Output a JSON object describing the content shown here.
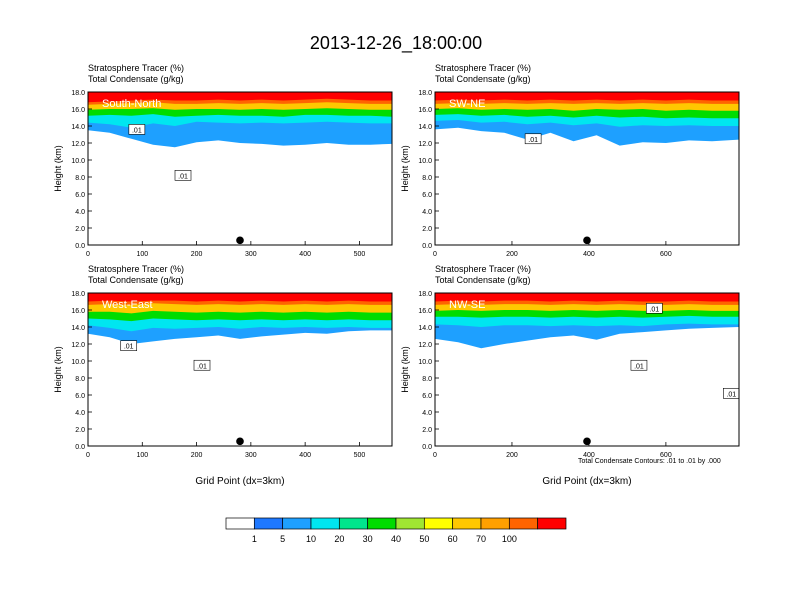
{
  "figure": {
    "title": "2013-12-26_18:00:00",
    "footnote": "Total Condensate Contours: .01 to .01 by .000",
    "colorbar": {
      "colors": [
        "#ffffff",
        "#1e78ff",
        "#1ea0ff",
        "#00e6f0",
        "#00e68c",
        "#00dc00",
        "#a0e632",
        "#ffff00",
        "#ffc800",
        "#ffa000",
        "#ff6400",
        "#ff0000"
      ],
      "labels": [
        "1",
        "5",
        "10",
        "20",
        "30",
        "40",
        "50",
        "60",
        "70",
        "100"
      ]
    }
  },
  "chart_data": [
    {
      "type": "heatmap",
      "line1": "Stratosphere Tracer   (%)",
      "line2": "Total Condensate   (g/kg)",
      "inset_label": "South-North",
      "xlabel": "",
      "ylabel": "Height (km)",
      "xlim": [
        0,
        560
      ],
      "ylim": [
        0,
        18
      ],
      "xticks": [
        0,
        100,
        200,
        300,
        400,
        500
      ],
      "yticks": [
        "0.0",
        "2.0",
        "4.0",
        "6.0",
        "8.0",
        "10.0",
        "12.0",
        "14.0",
        "16.0",
        "18.0"
      ],
      "marker_x": 280,
      "tracer_boundaries_km": {
        "x": [
          0,
          40,
          80,
          120,
          160,
          200,
          240,
          280,
          320,
          360,
          400,
          440,
          480,
          520,
          560
        ],
        "p100": [
          16.8,
          16.9,
          17.0,
          17.1,
          17.0,
          17.0,
          17.1,
          17.0,
          17.1,
          17.0,
          17.1,
          17.2,
          17.1,
          17.0,
          17.0
        ],
        "p70": [
          16.5,
          16.6,
          16.7,
          16.8,
          16.6,
          16.6,
          16.7,
          16.6,
          16.7,
          16.6,
          16.7,
          16.8,
          16.7,
          16.6,
          16.6
        ],
        "p50": [
          15.9,
          16.0,
          16.0,
          16.1,
          15.9,
          16.0,
          16.0,
          15.9,
          16.0,
          15.9,
          16.0,
          16.1,
          16.0,
          15.9,
          15.9
        ],
        "p30": [
          15.2,
          15.3,
          15.2,
          15.4,
          15.1,
          15.2,
          15.3,
          15.2,
          15.2,
          15.1,
          15.3,
          15.3,
          15.2,
          15.2,
          15.1
        ],
        "p10": [
          14.4,
          14.2,
          13.8,
          14.3,
          14.0,
          14.5,
          14.4,
          14.3,
          14.4,
          14.3,
          14.4,
          14.5,
          14.4,
          14.3,
          14.3
        ],
        "p1": [
          13.5,
          13.2,
          12.5,
          11.8,
          11.5,
          12.1,
          12.3,
          12.0,
          11.9,
          11.7,
          11.8,
          12.0,
          11.8,
          11.8,
          11.9
        ]
      },
      "contour_labels": [
        {
          "text": ".01",
          "x": 90,
          "y": 13.6
        },
        {
          "text": ".01",
          "x": 175,
          "y": 8.2
        }
      ]
    },
    {
      "type": "heatmap",
      "line1": "Stratosphere Tracer   (%)",
      "line2": "Total Condensate   (g/kg)",
      "inset_label": "SW-NE",
      "xlabel": "",
      "ylabel": "Height (km)",
      "xlim": [
        0,
        790
      ],
      "ylim": [
        0,
        18
      ],
      "xticks": [
        0,
        200,
        400,
        600
      ],
      "yticks": [
        "0.0",
        "2.0",
        "4.0",
        "6.0",
        "8.0",
        "10.0",
        "12.0",
        "14.0",
        "16.0",
        "18.0"
      ],
      "marker_x": 395,
      "tracer_boundaries_km": {
        "x": [
          0,
          60,
          120,
          180,
          240,
          300,
          360,
          420,
          480,
          540,
          600,
          660,
          720,
          790
        ],
        "p100": [
          17.0,
          17.1,
          17.0,
          17.1,
          17.0,
          17.1,
          17.0,
          17.1,
          17.0,
          17.1,
          17.0,
          17.1,
          17.0,
          17.0
        ],
        "p70": [
          16.6,
          16.7,
          16.6,
          16.7,
          16.6,
          16.7,
          16.6,
          16.7,
          16.6,
          16.7,
          16.6,
          16.7,
          16.6,
          16.6
        ],
        "p50": [
          16.0,
          16.1,
          15.9,
          16.0,
          15.9,
          16.0,
          15.8,
          16.0,
          15.9,
          16.0,
          15.8,
          15.9,
          15.8,
          15.8
        ],
        "p30": [
          15.3,
          15.4,
          15.2,
          15.3,
          15.1,
          15.2,
          15.0,
          15.2,
          15.0,
          15.1,
          14.9,
          15.0,
          14.9,
          14.9
        ],
        "p10": [
          14.6,
          14.7,
          14.4,
          14.5,
          14.2,
          14.4,
          14.1,
          14.3,
          13.9,
          14.1,
          14.0,
          14.1,
          14.0,
          14.0
        ],
        "p1": [
          13.6,
          13.8,
          13.4,
          13.2,
          12.4,
          13.2,
          12.2,
          12.9,
          11.7,
          12.1,
          12.0,
          12.3,
          12.2,
          12.4
        ]
      },
      "contour_labels": [
        {
          "text": ".01",
          "x": 255,
          "y": 12.5
        }
      ]
    },
    {
      "type": "heatmap",
      "line1": "Stratosphere Tracer   (%)",
      "line2": "Total Condensate   (g/kg)",
      "inset_label": "West-East",
      "xlabel": "Grid Point (dx=3km)",
      "ylabel": "Height (km)",
      "xlim": [
        0,
        560
      ],
      "ylim": [
        0,
        18
      ],
      "xticks": [
        0,
        100,
        200,
        300,
        400,
        500
      ],
      "yticks": [
        "0.0",
        "2.0",
        "4.0",
        "6.0",
        "8.0",
        "10.0",
        "12.0",
        "14.0",
        "16.0",
        "18.0"
      ],
      "marker_x": 280,
      "tracer_boundaries_km": {
        "x": [
          0,
          40,
          80,
          120,
          160,
          200,
          240,
          280,
          320,
          360,
          400,
          440,
          480,
          520,
          560
        ],
        "p100": [
          17.0,
          17.1,
          17.0,
          17.1,
          17.1,
          17.0,
          17.1,
          17.0,
          17.1,
          17.0,
          17.1,
          17.0,
          17.1,
          17.0,
          17.0
        ],
        "p70": [
          16.6,
          16.7,
          16.6,
          16.8,
          16.7,
          16.6,
          16.7,
          16.6,
          16.7,
          16.6,
          16.7,
          16.6,
          16.7,
          16.6,
          16.6
        ],
        "p50": [
          15.8,
          15.8,
          15.6,
          15.9,
          15.8,
          15.7,
          15.8,
          15.7,
          15.8,
          15.7,
          15.8,
          15.7,
          15.8,
          15.7,
          15.7
        ],
        "p30": [
          15.0,
          14.9,
          14.7,
          15.0,
          14.9,
          14.8,
          14.9,
          14.8,
          14.9,
          14.8,
          14.9,
          14.8,
          14.9,
          14.8,
          14.8
        ],
        "p10": [
          14.2,
          13.9,
          13.5,
          13.9,
          13.8,
          13.9,
          14.0,
          13.8,
          14.0,
          13.9,
          14.0,
          13.9,
          14.0,
          13.9,
          13.9
        ],
        "p1": [
          13.2,
          12.8,
          12.0,
          12.3,
          12.6,
          12.8,
          13.0,
          12.6,
          12.9,
          13.1,
          13.3,
          13.2,
          13.5,
          13.6,
          13.6
        ]
      },
      "contour_labels": [
        {
          "text": ".01",
          "x": 75,
          "y": 11.8
        },
        {
          "text": ".01",
          "x": 210,
          "y": 9.5
        }
      ]
    },
    {
      "type": "heatmap",
      "line1": "Stratosphere Tracer   (%)",
      "line2": "Total Condensate   (g/kg)",
      "inset_label": "NW-SE",
      "xlabel": "Grid Point (dx=3km)",
      "ylabel": "Height (km)",
      "xlim": [
        0,
        790
      ],
      "ylim": [
        0,
        18
      ],
      "xticks": [
        0,
        200,
        400,
        600
      ],
      "yticks": [
        "0.0",
        "2.0",
        "4.0",
        "6.0",
        "8.0",
        "10.0",
        "12.0",
        "14.0",
        "16.0",
        "18.0"
      ],
      "marker_x": 395,
      "tracer_boundaries_km": {
        "x": [
          0,
          60,
          120,
          180,
          240,
          300,
          360,
          420,
          480,
          540,
          600,
          660,
          720,
          790
        ],
        "p100": [
          17.0,
          17.1,
          17.0,
          17.1,
          17.1,
          17.0,
          17.1,
          17.0,
          17.1,
          17.0,
          17.0,
          17.1,
          17.0,
          17.0
        ],
        "p70": [
          16.6,
          16.7,
          16.6,
          16.7,
          16.7,
          16.6,
          16.7,
          16.6,
          16.7,
          16.6,
          16.6,
          16.7,
          16.6,
          16.6
        ],
        "p50": [
          15.9,
          16.0,
          15.9,
          16.0,
          16.0,
          15.9,
          16.0,
          15.9,
          16.0,
          15.9,
          15.9,
          16.0,
          15.9,
          15.9
        ],
        "p30": [
          15.2,
          15.2,
          15.1,
          15.2,
          15.2,
          15.1,
          15.2,
          15.1,
          15.2,
          15.1,
          15.2,
          15.3,
          15.2,
          15.2
        ],
        "p10": [
          14.3,
          14.2,
          14.0,
          14.2,
          14.2,
          14.1,
          14.2,
          14.1,
          14.2,
          14.1,
          14.3,
          14.4,
          14.3,
          14.3
        ],
        "p1": [
          12.6,
          12.2,
          11.5,
          12.0,
          12.4,
          12.8,
          13.0,
          12.5,
          13.2,
          13.4,
          13.6,
          13.8,
          13.9,
          14.0
        ]
      },
      "contour_labels": [
        {
          "text": ".01",
          "x": 570,
          "y": 16.2
        },
        {
          "text": ".01",
          "x": 530,
          "y": 9.5
        },
        {
          "text": ".01",
          "x": 770,
          "y": 6.2
        }
      ]
    }
  ]
}
